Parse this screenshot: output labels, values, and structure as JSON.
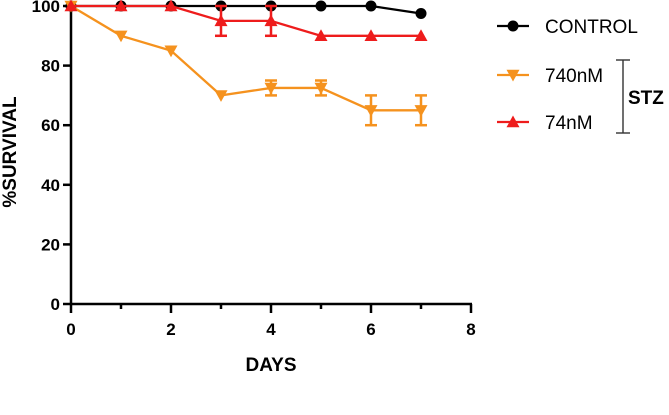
{
  "chart_data": {
    "type": "line",
    "title": "",
    "xlabel": "DAYS",
    "ylabel": "%SURVIVAL",
    "xlim": [
      0,
      8
    ],
    "ylim": [
      0,
      100
    ],
    "xticks": [
      0,
      2,
      4,
      6,
      8
    ],
    "yticks": [
      0,
      20,
      40,
      60,
      80,
      100
    ],
    "grid": false,
    "legend_position": "right",
    "legend_group_label": "STZ",
    "series": [
      {
        "name": "CONTROL",
        "color": "#000000",
        "marker": "circle",
        "x": [
          0,
          1,
          2,
          3,
          4,
          5,
          6,
          7
        ],
        "y": [
          100,
          100,
          100,
          100,
          100,
          100,
          100,
          97.5
        ],
        "err": [
          0,
          0,
          0,
          0,
          0,
          0,
          0,
          0
        ]
      },
      {
        "name": "740nM",
        "color": "#f5921e",
        "marker": "triangle-down",
        "x": [
          0,
          1,
          2,
          3,
          4,
          5,
          6,
          7
        ],
        "y": [
          100,
          90,
          85,
          70,
          72.5,
          72.5,
          65,
          65
        ],
        "err": [
          0,
          0,
          0,
          0,
          2.5,
          2.5,
          5,
          5
        ]
      },
      {
        "name": "74nM",
        "color": "#ee1c1c",
        "marker": "triangle-up",
        "x": [
          0,
          1,
          2,
          3,
          4,
          5,
          6,
          7
        ],
        "y": [
          100,
          100,
          100,
          95,
          95,
          90,
          90,
          90
        ],
        "err": [
          0,
          0,
          0,
          5,
          5,
          0,
          0,
          0
        ]
      }
    ]
  }
}
